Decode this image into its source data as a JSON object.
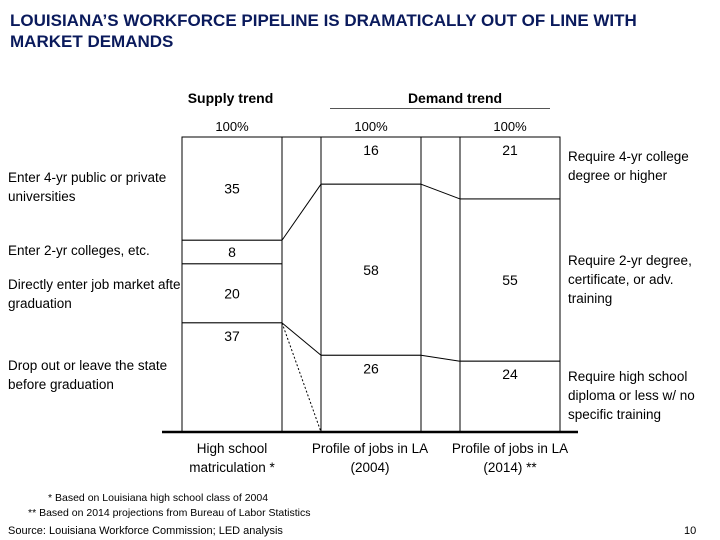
{
  "title": "LOUISIANA’S WORKFORCE PIPELINE IS DRAMATICALLY OUT OF LINE WITH MARKET DEMANDS",
  "headers": {
    "supply": "Supply trend",
    "demand": "Demand trend"
  },
  "left_labels": [
    "Enter 4-yr public or private universities",
    "Enter 2-yr colleges, etc.",
    "Directly enter job market after graduation",
    "Drop out or leave the state before graduation"
  ],
  "right_labels": [
    "Require 4-yr college degree or higher",
    "Require 2-yr degree, certificate, or adv. training",
    "Require high school diploma or less w/ no specific training"
  ],
  "chart_data": {
    "type": "bar",
    "stacked": true,
    "percent_label": "100%",
    "ylim": [
      0,
      100
    ],
    "categories": [
      "High school matriculation *",
      "Profile of jobs in LA (2004)",
      "Profile of jobs in LA (2014) **"
    ],
    "series": [
      {
        "values": [
          35,
          16,
          21
        ]
      },
      {
        "values": [
          8,
          58,
          55
        ]
      },
      {
        "values": [
          20,
          null,
          null
        ]
      },
      {
        "values": [
          37,
          26,
          24
        ]
      }
    ]
  },
  "footnotes": [
    "* Based on Louisiana high school class of 2004",
    "** Based on 2014 projections from Bureau of Labor Statistics"
  ],
  "source": "Source: Louisiana Workforce Commission; LED analysis",
  "page_number": "10"
}
